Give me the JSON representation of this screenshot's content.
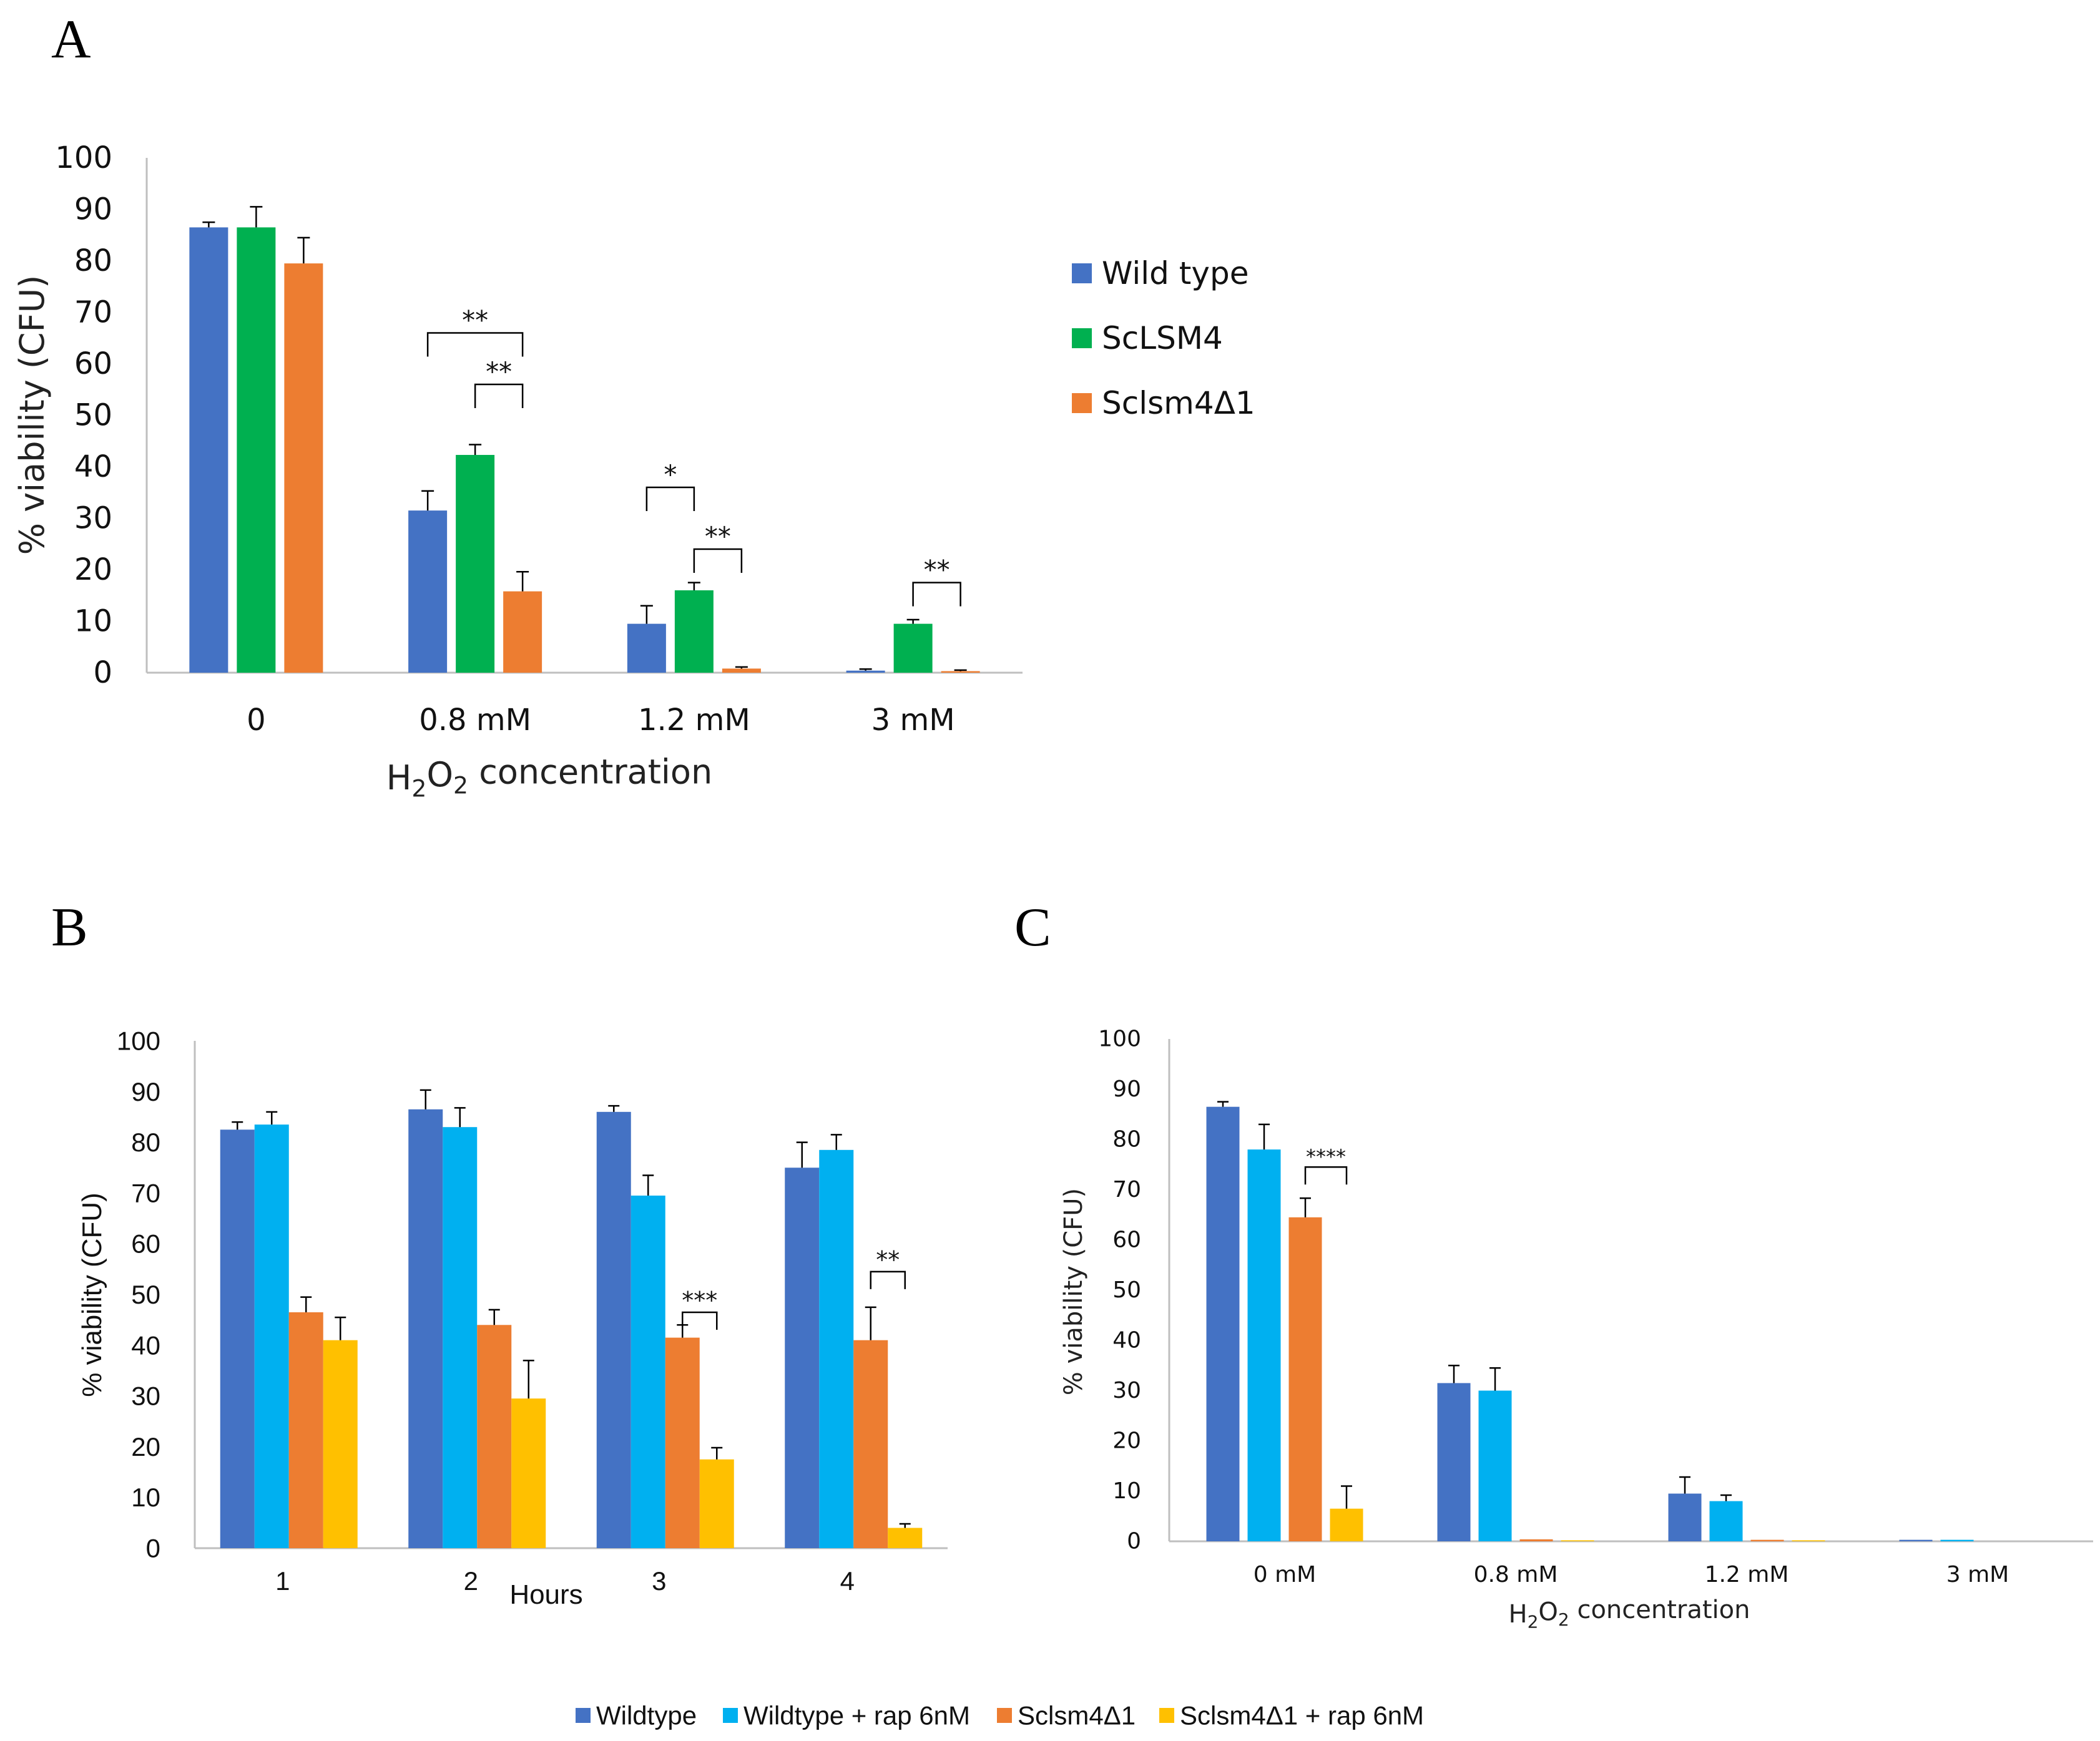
{
  "panels": {
    "a": "A",
    "b": "B",
    "c": "C"
  },
  "chart_data": [
    {
      "id": "A",
      "type": "bar",
      "title": "",
      "xlabel": "H2O2 concentration",
      "xlabel_parts": {
        "pre": "H",
        "sub1": "2",
        "mid": "O",
        "sub2": "2",
        "post": " concentration"
      },
      "ylabel": "% viability (CFU)",
      "ylim": [
        0,
        100
      ],
      "yticks": [
        0,
        10,
        20,
        30,
        40,
        50,
        60,
        70,
        80,
        90,
        100
      ],
      "grid": false,
      "legend_position": "right",
      "categories": [
        "0",
        "0.8 mM",
        "1.2 mM",
        "3 mM"
      ],
      "series": [
        {
          "name": "Wild type",
          "color": "#4472C4",
          "values": [
            86.5,
            31.5,
            9.5,
            0.4
          ],
          "errors": [
            1,
            3.8,
            3.5,
            0.3
          ]
        },
        {
          "name": "ScLSM4",
          "color": "#00B050",
          "values": [
            86.5,
            42.3,
            16,
            9.5
          ],
          "errors": [
            4,
            2,
            1.5,
            0.8
          ]
        },
        {
          "name": "Sclsm4Δ1",
          "color": "#ED7D31",
          "values": [
            79.5,
            15.8,
            0.8,
            0.3
          ],
          "errors": [
            5,
            3.8,
            0.3,
            0.2
          ]
        }
      ],
      "significance": [
        {
          "cat": 1,
          "from": 0,
          "to": 2,
          "label": "**",
          "level": 66
        },
        {
          "cat": 1,
          "from": 1,
          "to": 2,
          "label": "**",
          "level": 56
        },
        {
          "cat": 2,
          "from": 0,
          "to": 1,
          "label": "*",
          "level": 36
        },
        {
          "cat": 2,
          "from": 1,
          "to": 2,
          "label": "**",
          "level": 24
        },
        {
          "cat": 3,
          "from": 1,
          "to": 2,
          "label": "**",
          "level": 17.5
        }
      ]
    },
    {
      "id": "B",
      "type": "bar",
      "title": "",
      "xlabel": "Hours",
      "ylabel": "% viability (CFU)",
      "ylim": [
        0,
        100
      ],
      "yticks": [
        0,
        10,
        20,
        30,
        40,
        50,
        60,
        70,
        80,
        90,
        100
      ],
      "grid": false,
      "legend_position": "bottom",
      "categories": [
        "1",
        "2",
        "3",
        "4"
      ],
      "series": [
        {
          "name": "Wildtype",
          "color": "#4472C4",
          "values": [
            82.5,
            86.5,
            86,
            75
          ],
          "errors": [
            1.5,
            3.8,
            1.2,
            5
          ]
        },
        {
          "name": "Wildtype + rap 6nM",
          "color": "#00B0F0",
          "values": [
            83.5,
            83,
            69.5,
            78.5
          ],
          "errors": [
            2.5,
            3.8,
            4,
            3
          ]
        },
        {
          "name": "Sclsm4Δ1",
          "color": "#ED7D31",
          "values": [
            46.5,
            44,
            41.5,
            41
          ],
          "errors": [
            3,
            3,
            2.5,
            6.5
          ]
        },
        {
          "name": "Sclsm4Δ1 + rap 6nM",
          "color": "#FFC000",
          "values": [
            41,
            29.5,
            17.5,
            4
          ],
          "errors": [
            4.5,
            7.5,
            2.3,
            0.8
          ]
        }
      ],
      "significance": [
        {
          "cat": 2,
          "from": 2,
          "to": 3,
          "label": "***",
          "level": 46.5
        },
        {
          "cat": 3,
          "from": 2,
          "to": 3,
          "label": "**",
          "level": 54.5
        }
      ]
    },
    {
      "id": "C",
      "type": "bar",
      "title": "",
      "xlabel": "H2O2 concentration",
      "xlabel_parts": {
        "pre": "H",
        "sub1": "2",
        "mid": "O",
        "sub2": "2",
        "post": " concentration"
      },
      "ylabel": "% viability (CFU)",
      "ylim": [
        0,
        100
      ],
      "yticks": [
        0,
        10,
        20,
        30,
        40,
        50,
        60,
        70,
        80,
        90,
        100
      ],
      "grid": false,
      "legend_position": "bottom",
      "categories": [
        "0 mM",
        "0.8 mM",
        "1.2 mM",
        "3 mM"
      ],
      "series": [
        {
          "name": "Wildtype",
          "color": "#4472C4",
          "values": [
            86.5,
            31.5,
            9.5,
            0.3
          ],
          "errors": [
            1,
            3.5,
            3.3,
            0
          ]
        },
        {
          "name": "Wildtype + rap 6nM",
          "color": "#00B0F0",
          "values": [
            78,
            30,
            8,
            0.3
          ],
          "errors": [
            5,
            4.5,
            1.2,
            0
          ]
        },
        {
          "name": "Sclsm4Δ1",
          "color": "#ED7D31",
          "values": [
            64.5,
            0.4,
            0.3,
            0
          ],
          "errors": [
            3.8,
            0,
            0,
            0
          ]
        },
        {
          "name": "Sclsm4Δ1 + rap 6nM",
          "color": "#FFC000",
          "values": [
            6.5,
            0.2,
            0.2,
            0
          ],
          "errors": [
            4.5,
            0,
            0,
            0
          ]
        }
      ],
      "significance": [
        {
          "cat": 0,
          "from": 2,
          "to": 3,
          "label": "****",
          "level": 74.5
        }
      ]
    }
  ]
}
